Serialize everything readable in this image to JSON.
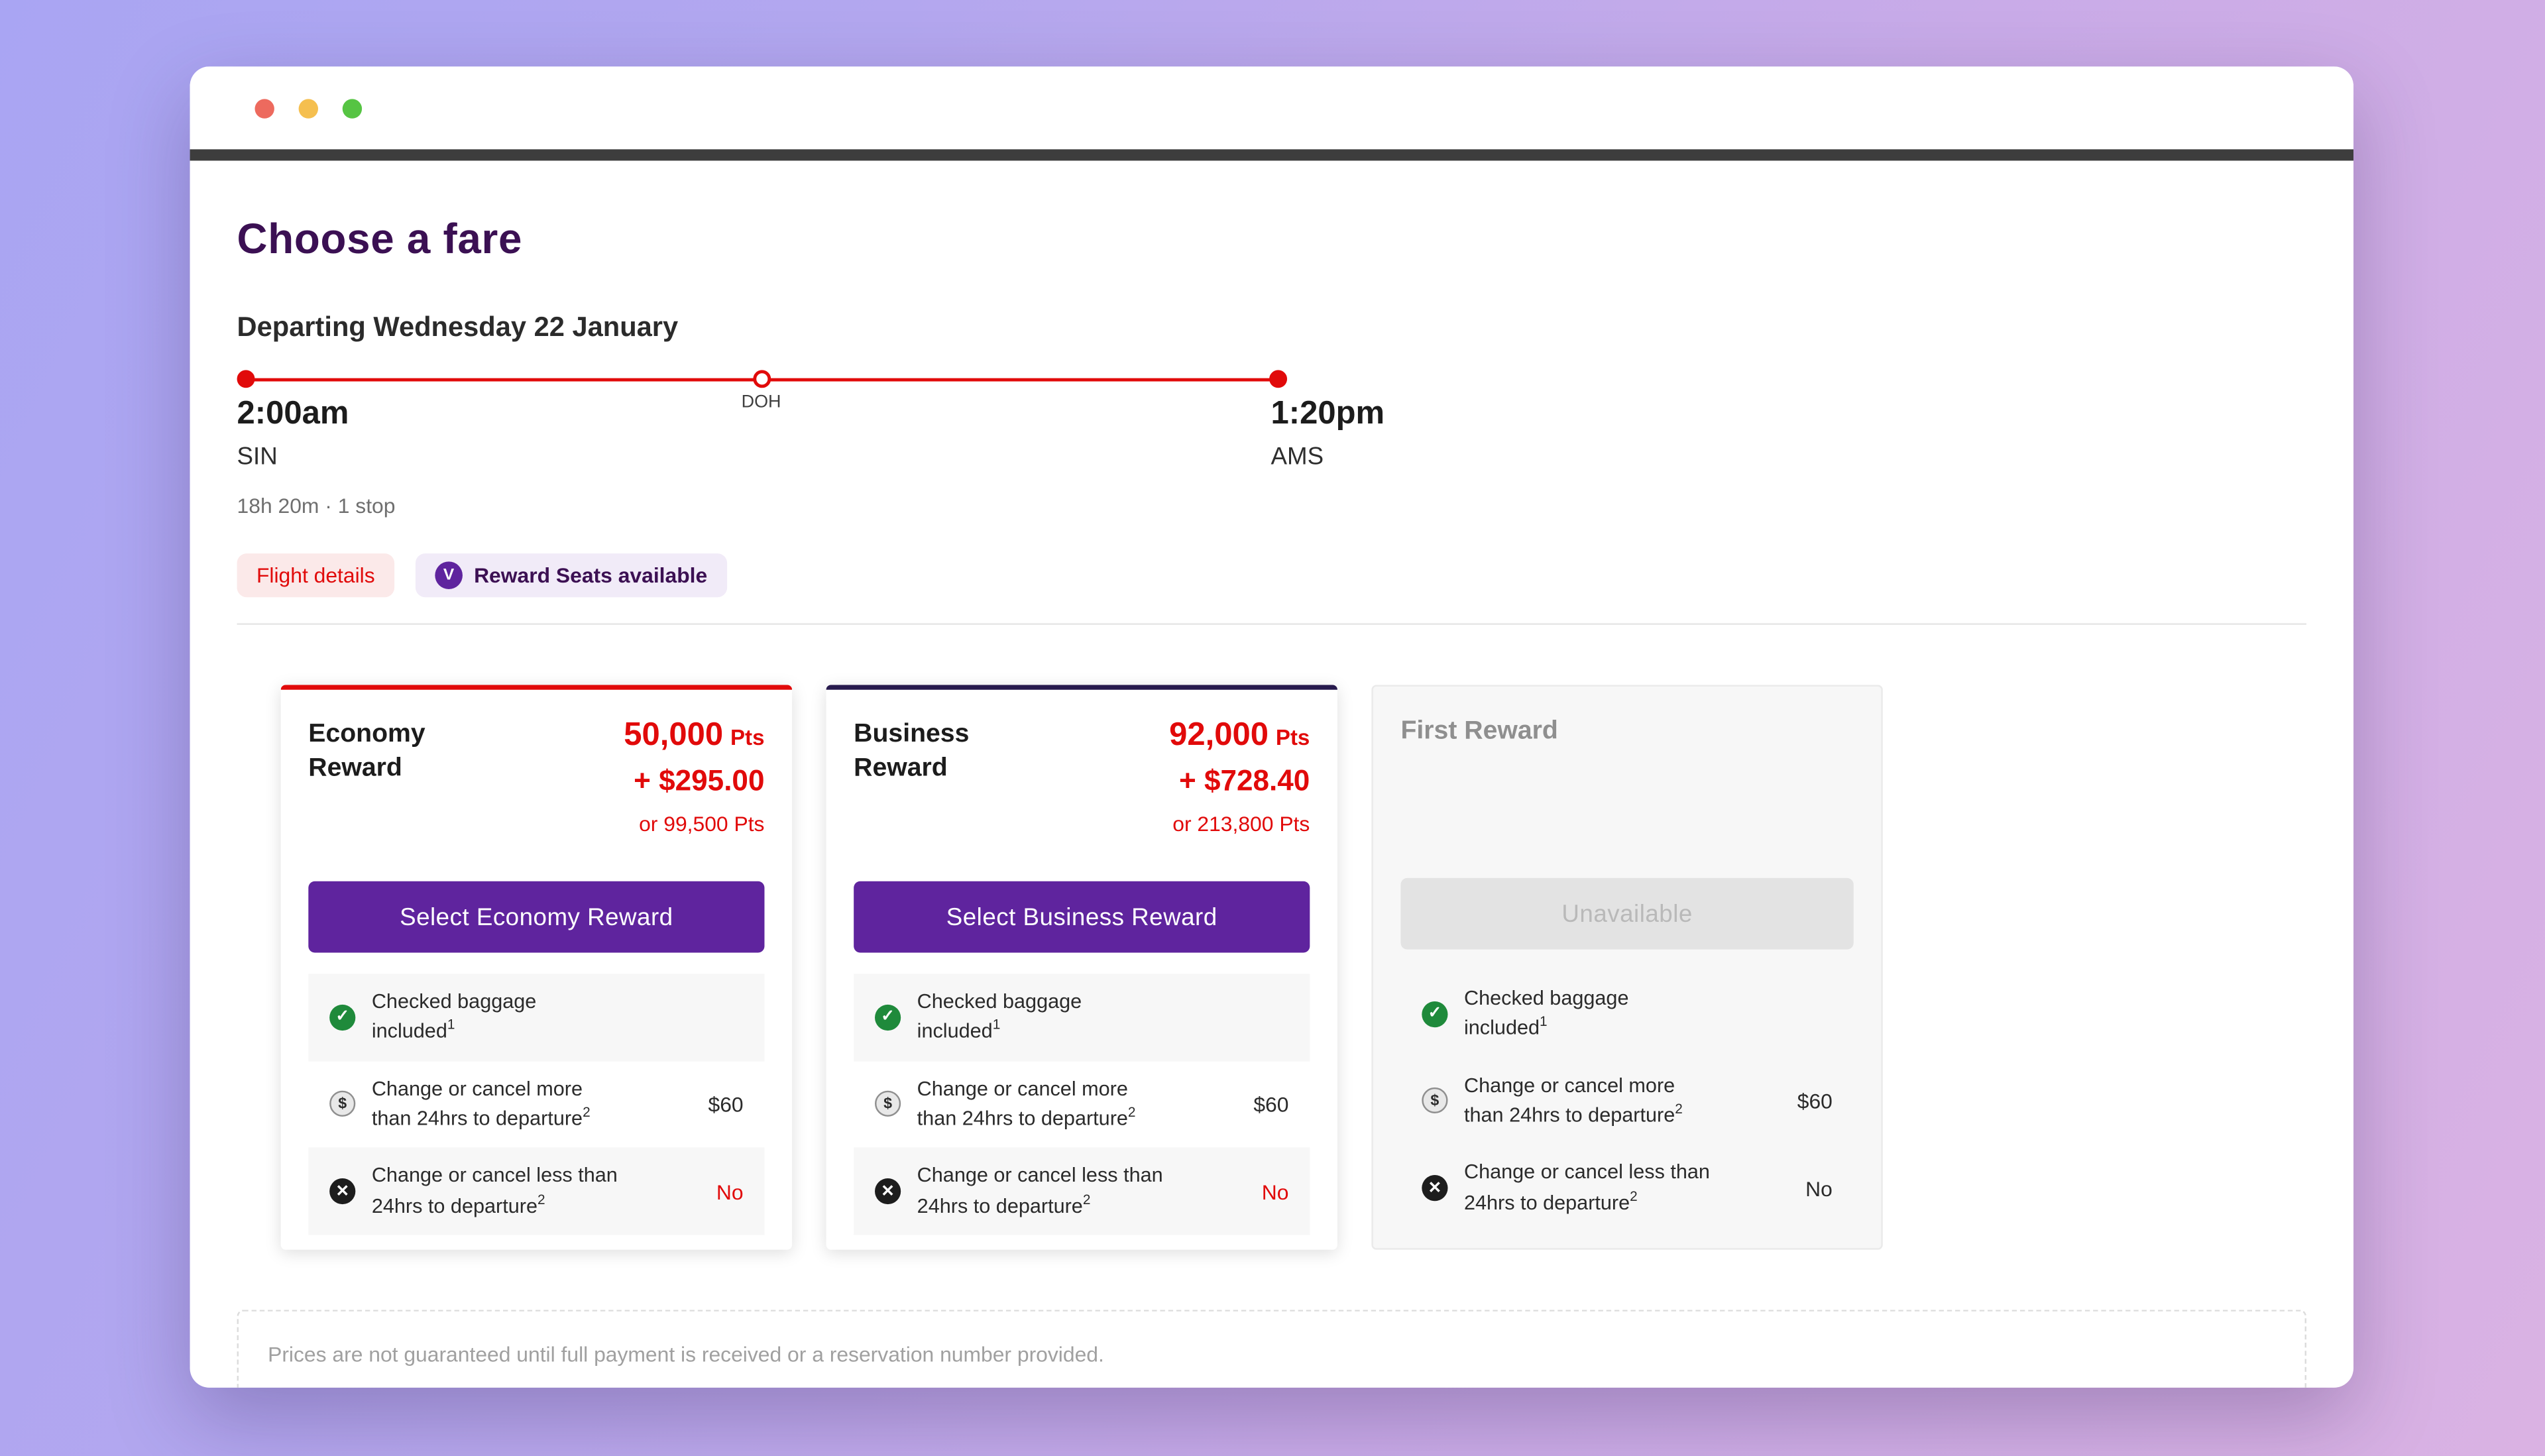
{
  "colors": {
    "brand_red": "#e10a0a",
    "brand_purple": "#5f249e",
    "heading_purple": "#3b1053",
    "business_accent": "#271a4d",
    "success_green": "#1f8a3b"
  },
  "header": {
    "title": "Choose a fare",
    "departing": "Departing Wednesday 22 January"
  },
  "itinerary": {
    "depart_time": "2:00am",
    "depart_code": "SIN",
    "arrive_time": "1:20pm",
    "arrive_code": "AMS",
    "stopover_code": "DOH",
    "duration": "18h 20m · 1 stop",
    "flight_details_chip": "Flight details",
    "reward_chip": "Reward Seats available",
    "reward_chip_icon_letter": "V"
  },
  "fares": [
    {
      "name": "Economy Reward",
      "points": "50,000",
      "points_unit": "Pts",
      "cash": "+ $295.00",
      "alt": "or 99,500 Pts",
      "cta": "Select Economy Reward",
      "benefits": [
        {
          "text": "Checked baggage included",
          "sup": "1",
          "value": ""
        },
        {
          "text": "Change or cancel more than 24hrs to departure",
          "sup": "2",
          "value": "$60"
        },
        {
          "text": "Change or cancel less than 24hrs to departure",
          "sup": "2",
          "value": "No"
        }
      ]
    },
    {
      "name": "Business Reward",
      "points": "92,000",
      "points_unit": "Pts",
      "cash": "+ $728.40",
      "alt": "or 213,800 Pts",
      "cta": "Select Business Reward",
      "benefits": [
        {
          "text": "Checked baggage included",
          "sup": "1",
          "value": ""
        },
        {
          "text": "Change or cancel more than 24hrs to departure",
          "sup": "2",
          "value": "$60"
        },
        {
          "text": "Change or cancel less than 24hrs to departure",
          "sup": "2",
          "value": "No"
        }
      ]
    },
    {
      "name": "First Reward",
      "cta": "Unavailable",
      "benefits": [
        {
          "text": "Checked baggage included",
          "sup": "1",
          "value": ""
        },
        {
          "text": "Change or cancel more than 24hrs to departure",
          "sup": "2",
          "value": "$60"
        },
        {
          "text": "Change or cancel less than 24hrs to departure",
          "sup": "2",
          "value": "No"
        }
      ]
    }
  ],
  "footer": {
    "note": "Prices are not guaranteed until full payment is received or a reservation number provided."
  }
}
